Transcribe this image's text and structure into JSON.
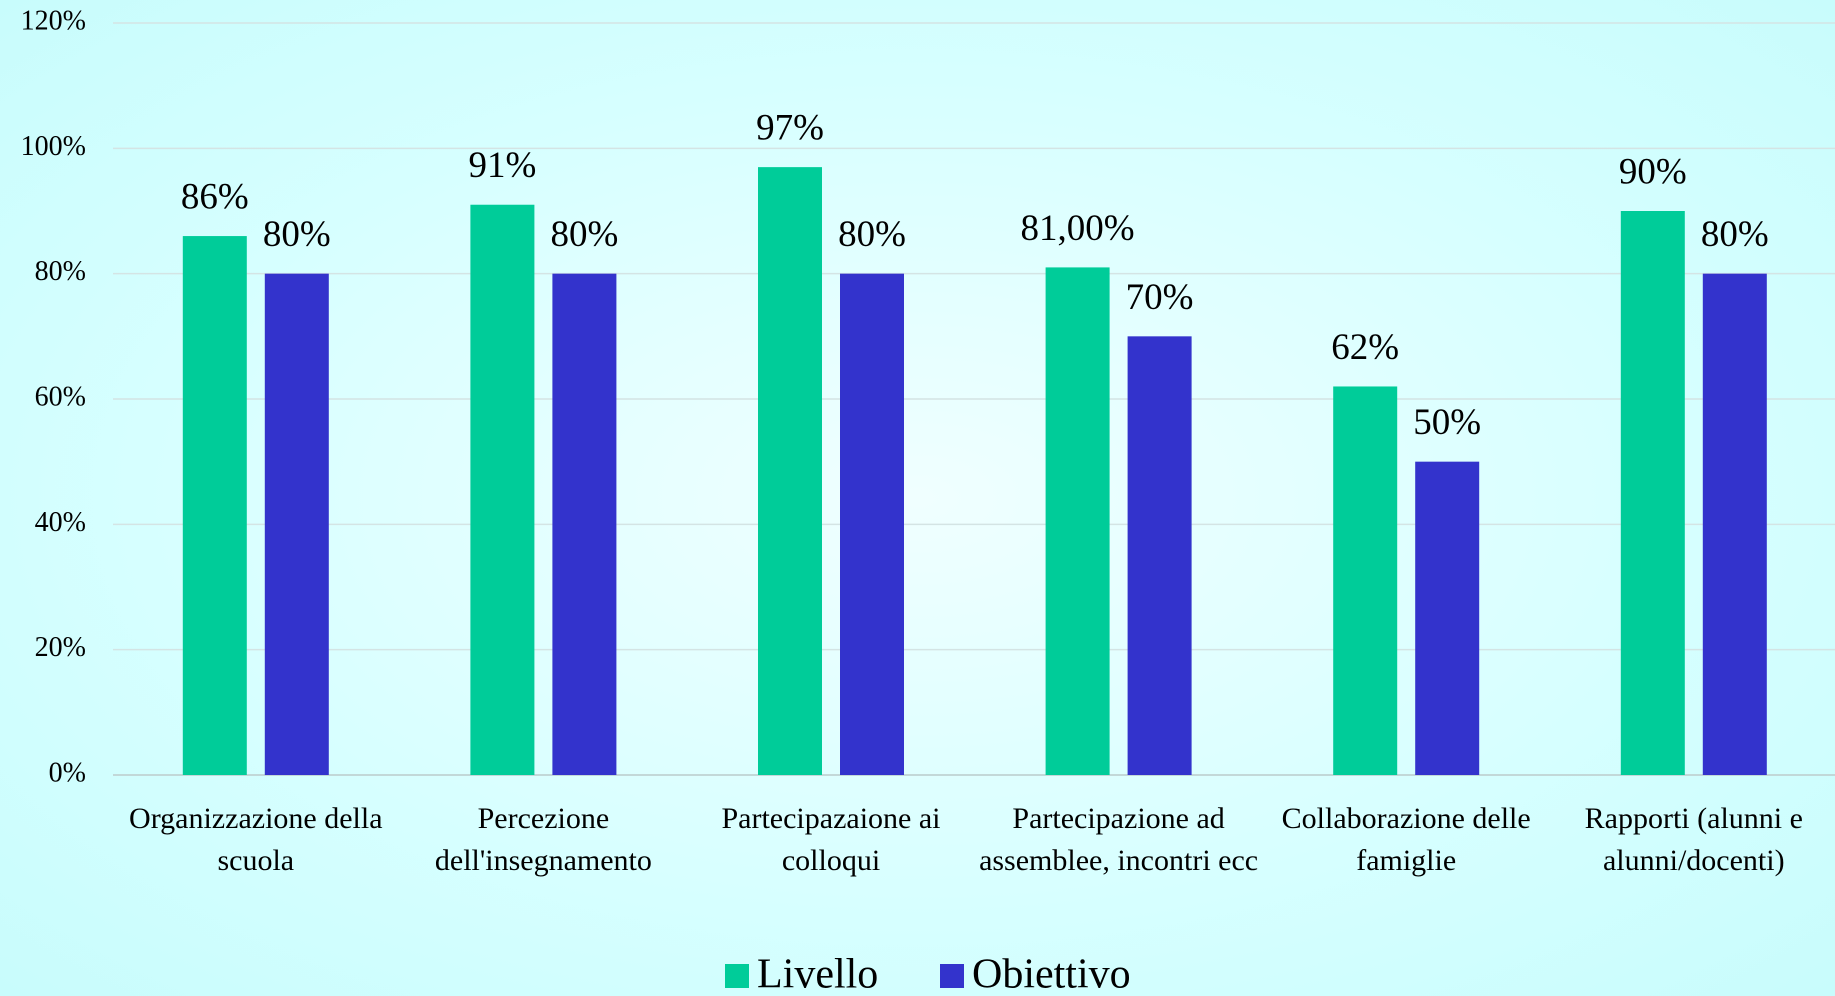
{
  "chart_data": {
    "type": "bar",
    "categories": [
      "Organizzazione della scuola",
      "Percezione dell'insegnamento",
      "Partecipazaione ai colloqui",
      "Partecipazione ad assemblee, incontri ecc",
      "Collaborazione delle famiglie",
      "Rapporti (alunni e alunni/docenti)"
    ],
    "series": [
      {
        "name": "Livello",
        "color": "#00cc99",
        "values": [
          86,
          91,
          97,
          81,
          62,
          90
        ],
        "value_labels": [
          "86%",
          "91%",
          "97%",
          "81,00%",
          "62%",
          "90%"
        ]
      },
      {
        "name": "Obiettivo",
        "color": "#3333cc",
        "values": [
          80,
          80,
          80,
          70,
          50,
          80
        ],
        "value_labels": [
          "80%",
          "80%",
          "80%",
          "70%",
          "50%",
          "80%"
        ]
      }
    ],
    "ylim": [
      0,
      120
    ],
    "yticks": [
      {
        "value": 0,
        "label": "0%"
      },
      {
        "value": 20,
        "label": "20%"
      },
      {
        "value": 40,
        "label": "40%"
      },
      {
        "value": 60,
        "label": "60%"
      },
      {
        "value": 80,
        "label": "80%"
      },
      {
        "value": 100,
        "label": "100%"
      },
      {
        "value": 120,
        "label": "120%"
      }
    ],
    "grid": true,
    "legend": "bottom"
  }
}
